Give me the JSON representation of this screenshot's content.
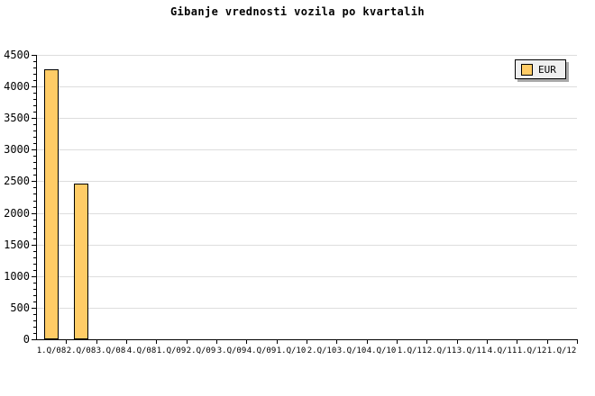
{
  "chart_data": {
    "type": "bar",
    "title": "Gibanje vrednosti vozila po kvartalih",
    "categories": [
      "1.Q/08",
      "2.Q/08",
      "3.Q/08",
      "4.Q/08",
      "1.Q/09",
      "2.Q/09",
      "3.Q/09",
      "4.Q/09",
      "1.Q/10",
      "2.Q/10",
      "3.Q/10",
      "4.Q/10",
      "1.Q/11",
      "2.Q/11",
      "3.Q/11",
      "4.Q/11",
      "1.Q/12",
      "1.Q/12"
    ],
    "series": [
      {
        "name": "EUR",
        "values": [
          4270,
          2460,
          0,
          0,
          0,
          0,
          0,
          0,
          0,
          0,
          0,
          0,
          0,
          0,
          0,
          0,
          0,
          0
        ]
      }
    ],
    "xlabel": "",
    "ylabel": "",
    "ylim": [
      0,
      4500
    ],
    "ytick_step": 500,
    "ytick_minor_step": 100,
    "ytick_labels": [
      "0",
      "500",
      "1000",
      "1500",
      "2000",
      "2500",
      "3000",
      "3500",
      "4000",
      "4500"
    ],
    "grid": "horizontal",
    "legend": {
      "position": "top-right",
      "entries": [
        "EUR"
      ]
    },
    "colors": {
      "bar_fill": "#FFCC66",
      "bar_border": "#000000",
      "grid_line": "#DDDDDD",
      "axis": "#000000",
      "text": "#000000",
      "legend_bg": "#EFEFEF",
      "legend_border": "#000000",
      "legend_shadow": "#A9A9A9",
      "background": "#FFFFFF"
    }
  }
}
